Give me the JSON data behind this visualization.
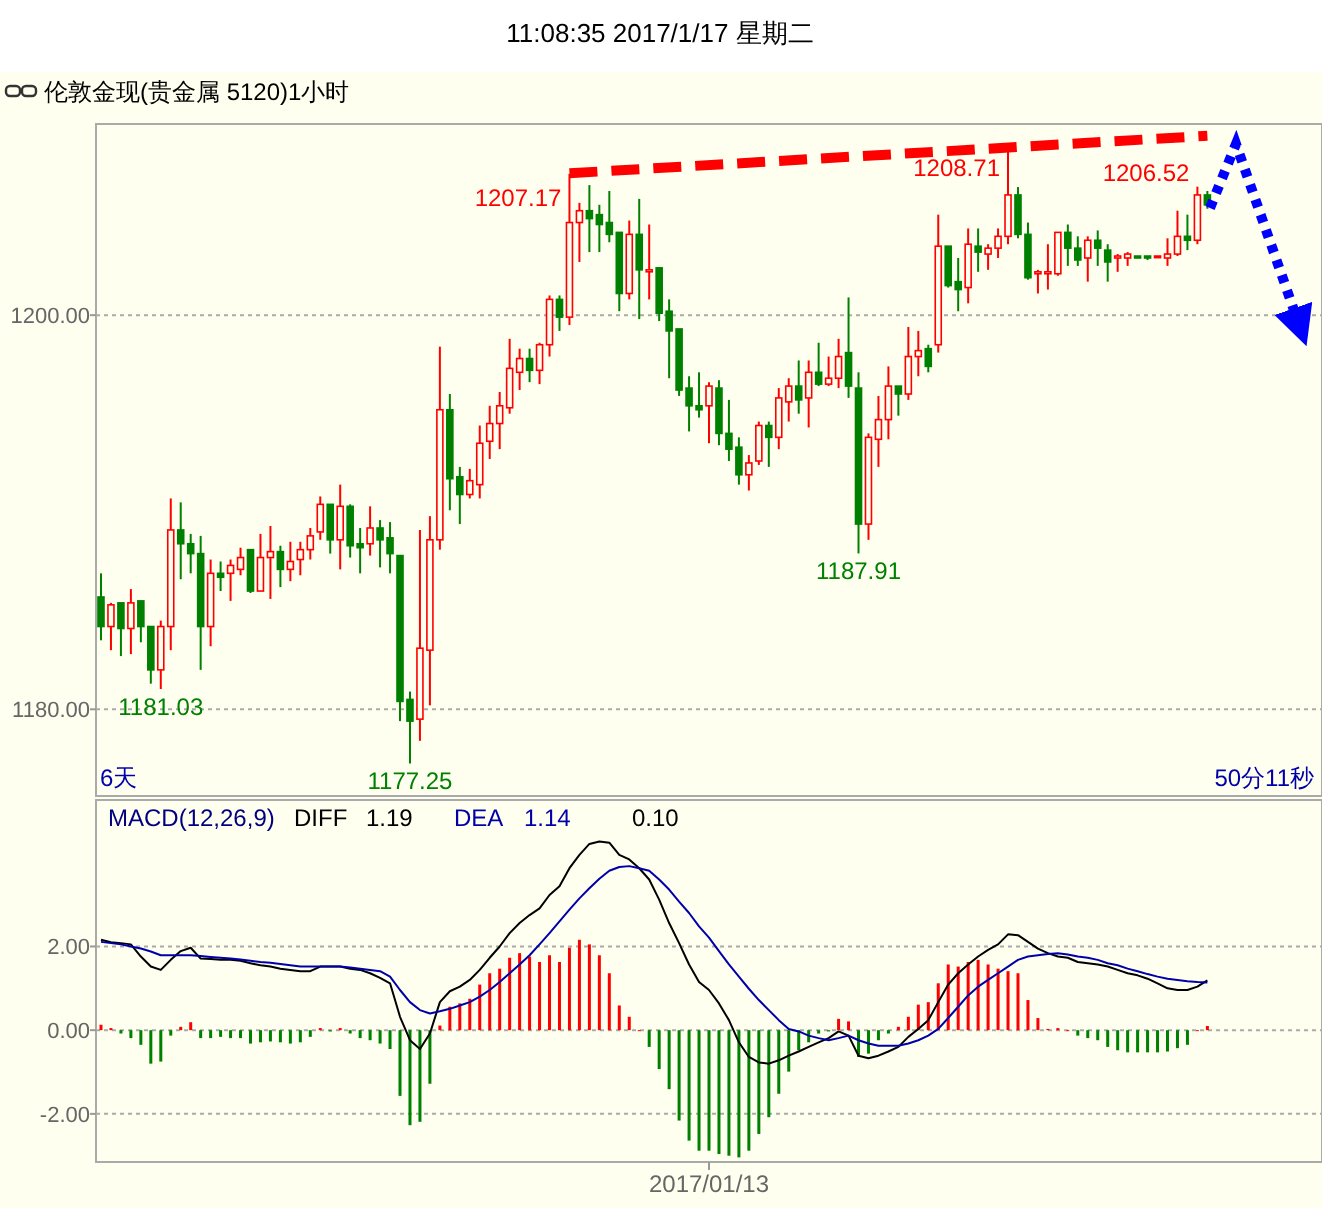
{
  "chart_data": [
    {
      "type": "candlestick",
      "title": "11:08:35 2017/1/17 星期二",
      "subtitle": "伦敦金现(贵金属 5120)1小时",
      "categories": [
        null,
        null,
        null,
        null,
        null,
        null,
        null,
        null,
        null,
        null,
        null,
        null,
        null,
        null,
        null,
        null,
        null,
        null,
        null,
        null,
        null,
        null,
        null,
        null,
        null,
        null,
        null,
        null,
        null,
        null,
        null,
        null,
        null,
        null,
        null,
        null,
        null,
        null,
        null,
        null,
        null,
        null,
        null,
        null,
        null,
        null,
        null,
        null,
        null,
        null,
        null,
        null,
        null,
        null,
        null,
        null,
        null,
        null,
        null,
        null,
        null,
        null,
        null,
        null,
        null,
        null,
        null,
        null,
        null,
        null,
        null,
        null,
        null,
        null,
        null,
        null,
        null,
        null,
        null,
        null,
        null,
        null,
        null,
        null,
        null,
        null,
        null,
        null,
        null,
        null,
        null,
        null,
        null,
        null,
        null,
        null,
        null,
        null,
        null,
        null,
        null,
        null,
        null,
        null,
        null,
        null,
        null,
        null,
        null,
        null,
        null,
        null,
        null,
        null,
        null,
        null,
        null,
        null,
        null,
        null,
        null,
        null,
        null
      ],
      "ohlc": [
        [
          1185.7,
          1186.9,
          1183.5,
          1184.2
        ],
        [
          1184.2,
          1185.4,
          1183.0,
          1185.3
        ],
        [
          1185.4,
          1185.4,
          1182.7,
          1184.1
        ],
        [
          1184.1,
          1186.1,
          1182.8,
          1185.4
        ],
        [
          1185.5,
          1185.5,
          1183.4,
          1184.2
        ],
        [
          1184.2,
          1184.2,
          1181.3,
          1182.0
        ],
        [
          1182.0,
          1184.5,
          1181.03,
          1184.2
        ],
        [
          1184.2,
          1190.7,
          1183.0,
          1189.1
        ],
        [
          1189.1,
          1190.5,
          1186.6,
          1188.4
        ],
        [
          1188.4,
          1188.9,
          1186.9,
          1187.9
        ],
        [
          1187.9,
          1188.8,
          1182.0,
          1184.2
        ],
        [
          1184.2,
          1187.6,
          1183.2,
          1186.9
        ],
        [
          1186.9,
          1187.5,
          1186.0,
          1186.7
        ],
        [
          1186.9,
          1187.6,
          1185.5,
          1187.3
        ],
        [
          1187.1,
          1188.2,
          1186.8,
          1187.7
        ],
        [
          1188.1,
          1188.1,
          1185.9,
          1186.0
        ],
        [
          1186.0,
          1188.9,
          1186.0,
          1187.7
        ],
        [
          1187.7,
          1189.3,
          1185.6,
          1188.0
        ],
        [
          1188.0,
          1188.3,
          1186.2,
          1187.1
        ],
        [
          1187.1,
          1188.5,
          1186.5,
          1187.5
        ],
        [
          1187.6,
          1188.5,
          1186.8,
          1188.1
        ],
        [
          1188.1,
          1189.2,
          1187.6,
          1188.8
        ],
        [
          1189.0,
          1190.8,
          1188.6,
          1190.4
        ],
        [
          1190.4,
          1190.4,
          1187.9,
          1188.6
        ],
        [
          1188.6,
          1191.4,
          1187.1,
          1190.3
        ],
        [
          1190.3,
          1190.4,
          1187.7,
          1188.3
        ],
        [
          1188.4,
          1189.2,
          1186.9,
          1188.2
        ],
        [
          1188.4,
          1190.3,
          1187.8,
          1189.2
        ],
        [
          1189.2,
          1189.6,
          1187.2,
          1188.6
        ],
        [
          1188.7,
          1189.5,
          1186.9,
          1187.9
        ],
        [
          1187.8,
          1187.8,
          1179.4,
          1180.4
        ],
        [
          1180.5,
          1180.9,
          1177.25,
          1179.4
        ],
        [
          1179.5,
          1189.1,
          1178.4,
          1183.1
        ],
        [
          1183.0,
          1189.8,
          1180.2,
          1188.6
        ],
        [
          1188.6,
          1198.4,
          1188.1,
          1195.2
        ],
        [
          1195.2,
          1196.0,
          1190.1,
          1191.7
        ],
        [
          1191.8,
          1192.3,
          1189.4,
          1190.9
        ],
        [
          1190.9,
          1192.2,
          1190.7,
          1191.6
        ],
        [
          1191.4,
          1194.4,
          1190.7,
          1193.5
        ],
        [
          1193.6,
          1195.4,
          1192.7,
          1194.5
        ],
        [
          1194.5,
          1196.1,
          1193.2,
          1195.4
        ],
        [
          1195.3,
          1198.8,
          1195.0,
          1197.3
        ],
        [
          1197.1,
          1198.3,
          1196.2,
          1197.8
        ],
        [
          1197.8,
          1198.3,
          1196.6,
          1197.2
        ],
        [
          1197.2,
          1198.6,
          1196.5,
          1198.5
        ],
        [
          1198.5,
          1201.0,
          1197.9,
          1200.8
        ],
        [
          1200.8,
          1201.0,
          1199.2,
          1199.9
        ],
        [
          1199.9,
          1207.17,
          1199.5,
          1204.7
        ],
        [
          1204.7,
          1205.7,
          1202.7,
          1205.3
        ],
        [
          1205.3,
          1206.6,
          1203.2,
          1204.9
        ],
        [
          1205.1,
          1205.6,
          1203.2,
          1204.6
        ],
        [
          1204.7,
          1206.3,
          1203.7,
          1204.1
        ],
        [
          1204.2,
          1204.2,
          1200.2,
          1201.1
        ],
        [
          1201.1,
          1204.8,
          1200.8,
          1204.1
        ],
        [
          1204.1,
          1205.9,
          1199.8,
          1202.3
        ],
        [
          1202.2,
          1204.6,
          1200.8,
          1202.3
        ],
        [
          1202.4,
          1202.4,
          1199.7,
          1200.1
        ],
        [
          1200.2,
          1200.8,
          1196.8,
          1199.2
        ],
        [
          1199.3,
          1199.3,
          1195.9,
          1196.2
        ],
        [
          1196.3,
          1196.9,
          1194.1,
          1195.4
        ],
        [
          1195.4,
          1197.1,
          1194.8,
          1195.2
        ],
        [
          1195.4,
          1196.6,
          1193.5,
          1196.4
        ],
        [
          1196.3,
          1196.7,
          1193.4,
          1194.0
        ],
        [
          1194.0,
          1195.7,
          1192.6,
          1193.2
        ],
        [
          1193.3,
          1193.8,
          1191.4,
          1191.9
        ],
        [
          1191.9,
          1192.9,
          1191.1,
          1192.5
        ],
        [
          1192.6,
          1194.6,
          1192.4,
          1194.4
        ],
        [
          1194.4,
          1194.6,
          1192.3,
          1193.8
        ],
        [
          1193.8,
          1196.3,
          1193.2,
          1195.8
        ],
        [
          1195.6,
          1196.8,
          1194.6,
          1196.4
        ],
        [
          1196.4,
          1197.7,
          1195.0,
          1195.7
        ],
        [
          1195.8,
          1197.7,
          1194.3,
          1197.1
        ],
        [
          1197.1,
          1198.6,
          1196.4,
          1196.5
        ],
        [
          1196.5,
          1197.9,
          1196.4,
          1196.8
        ],
        [
          1196.8,
          1198.8,
          1196.3,
          1197.9
        ],
        [
          1198.1,
          1200.9,
          1195.8,
          1196.4
        ],
        [
          1196.3,
          1197.1,
          1187.91,
          1189.4
        ],
        [
          1189.4,
          1194.0,
          1188.6,
          1193.8
        ],
        [
          1193.7,
          1195.9,
          1192.3,
          1194.7
        ],
        [
          1194.7,
          1197.4,
          1193.7,
          1196.4
        ],
        [
          1196.4,
          1196.4,
          1194.9,
          1196.0
        ],
        [
          1196.0,
          1199.4,
          1195.7,
          1197.9
        ],
        [
          1197.9,
          1199.2,
          1196.9,
          1198.2
        ],
        [
          1198.3,
          1198.5,
          1197.1,
          1197.4
        ],
        [
          1198.5,
          1205.1,
          1198.1,
          1203.5
        ],
        [
          1203.5,
          1203.5,
          1201.4,
          1201.5
        ],
        [
          1201.7,
          1202.9,
          1200.2,
          1201.3
        ],
        [
          1201.4,
          1204.4,
          1200.6,
          1203.6
        ],
        [
          1203.5,
          1204.4,
          1202.2,
          1203.2
        ],
        [
          1203.1,
          1203.6,
          1202.3,
          1203.4
        ],
        [
          1203.4,
          1204.4,
          1202.9,
          1204.0
        ],
        [
          1204.0,
          1208.71,
          1203.6,
          1206.1
        ],
        [
          1206.1,
          1206.5,
          1203.9,
          1204.1
        ],
        [
          1204.1,
          1204.7,
          1201.8,
          1201.9
        ],
        [
          1202.1,
          1202.3,
          1201.1,
          1202.2
        ],
        [
          1202.1,
          1203.6,
          1201.3,
          1202.2
        ],
        [
          1202.1,
          1204.2,
          1202.0,
          1204.2
        ],
        [
          1204.2,
          1204.6,
          1202.5,
          1203.4
        ],
        [
          1203.4,
          1204.0,
          1202.5,
          1202.8
        ],
        [
          1202.9,
          1204.0,
          1201.7,
          1203.8
        ],
        [
          1203.8,
          1204.3,
          1202.5,
          1203.4
        ],
        [
          1203.3,
          1203.6,
          1201.7,
          1202.7
        ],
        [
          1202.9,
          1203.1,
          1202.2,
          1203.0
        ],
        [
          1202.9,
          1203.2,
          1202.5,
          1203.1
        ],
        [
          1203.0,
          1203.0,
          1202.9,
          1202.9
        ],
        [
          1203.0,
          1203.0,
          1202.8,
          1202.9
        ],
        [
          1203.0,
          1203.0,
          1203.0,
          1203.0
        ],
        [
          1202.9,
          1203.9,
          1202.5,
          1203.1
        ],
        [
          1203.1,
          1205.3,
          1203.0,
          1204.0
        ],
        [
          1204.0,
          1205.1,
          1203.3,
          1203.8
        ],
        [
          1203.8,
          1206.52,
          1203.6,
          1206.1
        ],
        [
          1206.1,
          1206.3,
          1205.4,
          1205.6
        ],
        null,
        null,
        null,
        null,
        null,
        null,
        null,
        null,
        null,
        null,
        null
      ],
      "series": [
        {
          "type": "line",
          "color": "#ff0000",
          "line_style": "dashed",
          "values": [
            null,
            null,
            null,
            null,
            null,
            null,
            null,
            null,
            null,
            null,
            null,
            null,
            null,
            null,
            null,
            null,
            null,
            null,
            null,
            null,
            null,
            null,
            null,
            null,
            null,
            null,
            null,
            null,
            null,
            null,
            null,
            null,
            null,
            null,
            null,
            null,
            null,
            null,
            null,
            null,
            null,
            null,
            null,
            null,
            null,
            null,
            null,
            1207.2,
            null,
            null,
            null,
            null,
            null,
            null,
            null,
            null,
            null,
            null,
            null,
            null,
            null,
            null,
            null,
            null,
            null,
            null,
            null,
            null,
            null,
            null,
            null,
            null,
            null,
            null,
            null,
            null,
            null,
            null,
            null,
            null,
            null,
            null,
            null,
            null,
            null,
            null,
            null,
            null,
            null,
            null,
            null,
            null,
            null,
            null,
            null,
            null,
            null,
            null,
            null,
            null,
            null,
            null,
            null,
            null,
            null,
            null,
            null,
            null,
            null,
            null,
            null,
            1209.1,
            null,
            null,
            null,
            null,
            null,
            null,
            null,
            null,
            null,
            null,
            null
          ]
        }
      ],
      "ylim": [
        1175.6,
        1209.7
      ],
      "yticks": [
        {
          "value": 1180,
          "label": "1180.00"
        },
        {
          "value": 1200,
          "label": "1200.00"
        }
      ],
      "grid": "y",
      "tick_labels": "y",
      "annotations": [
        "1207.17",
        "1208.71",
        "1206.52",
        "1181.03",
        "1177.25",
        "1187.91",
        "6天",
        "50分11秒"
      ]
    },
    {
      "type": "bar",
      "title": "MACD(12,26,9)",
      "categories": [
        null,
        null,
        null,
        null,
        null,
        null,
        null,
        null,
        null,
        null,
        null,
        null,
        null,
        null,
        null,
        null,
        null,
        null,
        null,
        null,
        null,
        null,
        null,
        null,
        null,
        null,
        null,
        null,
        null,
        null,
        null,
        null,
        null,
        null,
        null,
        null,
        null,
        null,
        null,
        null,
        null,
        null,
        null,
        null,
        null,
        null,
        null,
        null,
        null,
        null,
        null,
        null,
        null,
        null,
        null,
        null,
        null,
        null,
        null,
        null,
        null,
        "2017/01/13",
        null,
        null,
        null,
        null,
        null,
        null,
        null,
        null,
        null,
        null,
        null,
        null,
        null,
        null,
        null,
        null,
        null,
        null,
        null,
        null,
        null,
        null,
        null,
        null,
        null,
        null,
        null,
        null,
        null,
        null,
        null,
        null,
        null,
        null,
        null,
        null,
        null,
        null,
        null,
        null,
        null,
        null,
        null,
        null,
        null,
        null,
        null,
        null,
        null,
        null,
        null,
        null,
        null,
        null,
        null,
        null,
        null,
        null,
        null,
        null,
        null
      ],
      "series": [
        {
          "type": "bar",
          "colors": [
            "#ff0000",
            "#ff0000",
            "#008000",
            "#008000",
            "#008000",
            "#008000",
            "#008000",
            "#008000",
            "#ff0000",
            "#ff0000",
            "#008000",
            "#008000",
            "#008000",
            "#008000",
            "#008000",
            "#008000",
            "#008000",
            "#008000",
            "#008000",
            "#008000",
            "#008000",
            "#008000",
            "#ff0000",
            "#008000",
            "#ff0000",
            "#008000",
            "#008000",
            "#008000",
            "#008000",
            "#008000",
            "#008000",
            "#008000",
            "#008000",
            "#008000",
            "#ff0000",
            "#ff0000",
            "#ff0000",
            "#ff0000",
            "#ff0000",
            "#ff0000",
            "#ff0000",
            "#ff0000",
            "#ff0000",
            "#ff0000",
            "#ff0000",
            "#ff0000",
            "#ff0000",
            "#ff0000",
            "#ff0000",
            "#ff0000",
            "#ff0000",
            "#ff0000",
            "#ff0000",
            "#ff0000",
            "#ff0000",
            "#008000",
            "#008000",
            "#008000",
            "#008000",
            "#008000",
            "#008000",
            "#008000",
            "#008000",
            "#008000",
            "#008000",
            "#008000",
            "#008000",
            "#008000",
            "#008000",
            "#008000",
            "#008000",
            "#008000",
            "#008000",
            "#008000",
            "#ff0000",
            "#ff0000",
            "#008000",
            "#008000",
            "#008000",
            "#008000",
            "#ff0000",
            "#ff0000",
            "#ff0000",
            "#ff0000",
            "#ff0000",
            "#ff0000",
            "#ff0000",
            "#ff0000",
            "#ff0000",
            "#ff0000",
            "#ff0000",
            "#ff0000",
            "#ff0000",
            "#ff0000",
            "#ff0000",
            "#ff0000",
            "#ff0000",
            "#ff0000",
            "#008000",
            "#008000",
            "#008000",
            "#008000",
            "#008000",
            "#008000",
            "#008000",
            "#008000",
            "#008000",
            "#008000",
            "#008000",
            "#008000",
            "#ff0000",
            "#ff0000",
            null,
            null,
            null,
            null,
            null,
            null,
            null,
            null,
            null,
            null,
            null
          ],
          "values": [
            0.13,
            0.05,
            -0.08,
            -0.19,
            -0.35,
            -0.8,
            -0.75,
            -0.13,
            0.08,
            0.19,
            -0.19,
            -0.19,
            -0.16,
            -0.19,
            -0.19,
            -0.32,
            -0.29,
            -0.27,
            -0.29,
            -0.32,
            -0.29,
            -0.16,
            0.05,
            -0.03,
            0.05,
            -0.08,
            -0.19,
            -0.24,
            -0.32,
            -0.45,
            -1.57,
            -2.27,
            -2.19,
            -1.28,
            0.11,
            0.56,
            0.64,
            0.75,
            1.09,
            1.36,
            1.47,
            1.73,
            1.84,
            1.76,
            1.63,
            1.79,
            1.63,
            1.97,
            2.16,
            2.05,
            1.79,
            1.36,
            0.59,
            0.32,
            0,
            -0.4,
            -0.93,
            -1.41,
            -2.16,
            -2.64,
            -2.88,
            -2.88,
            -2.96,
            -3.0,
            -3.04,
            -2.88,
            -2.48,
            -2.08,
            -1.52,
            -0.99,
            -0.48,
            -0.29,
            -0.08,
            -0.03,
            0.27,
            0.21,
            -0.64,
            -0.56,
            -0.24,
            -0.08,
            0.08,
            0.32,
            0.61,
            0.67,
            1.12,
            1.57,
            1.52,
            1.63,
            1.68,
            1.57,
            1.47,
            1.41,
            1.36,
            0.72,
            0.29,
            0.03,
            0.05,
            0,
            -0.13,
            -0.19,
            -0.24,
            -0.4,
            -0.48,
            -0.53,
            -0.53,
            -0.53,
            -0.53,
            -0.51,
            -0.43,
            -0.35,
            0,
            0.1,
            null,
            null,
            null,
            null,
            null,
            null,
            null,
            null,
            null,
            null,
            null
          ]
        },
        {
          "name": "DIFF",
          "type": "line",
          "color": "#000000",
          "values": [
            2.16,
            2.1,
            2.08,
            2.05,
            1.76,
            1.52,
            1.44,
            1.68,
            1.89,
            1.97,
            1.71,
            1.7,
            1.68,
            1.68,
            1.66,
            1.6,
            1.55,
            1.52,
            1.47,
            1.44,
            1.41,
            1.41,
            1.52,
            1.52,
            1.52,
            1.47,
            1.44,
            1.36,
            1.25,
            1.12,
            0.32,
            -0.24,
            -0.45,
            -0.08,
            0.67,
            0.93,
            1.04,
            1.2,
            1.44,
            1.73,
            2.0,
            2.32,
            2.56,
            2.75,
            2.91,
            3.23,
            3.44,
            3.87,
            4.19,
            4.45,
            4.51,
            4.48,
            4.19,
            4.08,
            3.87,
            3.6,
            3.12,
            2.56,
            2.08,
            1.57,
            1.15,
            0.96,
            0.64,
            0.24,
            -0.29,
            -0.64,
            -0.77,
            -0.8,
            -0.72,
            -0.61,
            -0.51,
            -0.4,
            -0.29,
            -0.19,
            -0.03,
            -0.13,
            -0.61,
            -0.67,
            -0.61,
            -0.51,
            -0.4,
            -0.16,
            0.03,
            0.24,
            0.67,
            1.09,
            1.36,
            1.57,
            1.76,
            1.92,
            2.05,
            2.29,
            2.27,
            2.11,
            1.95,
            1.84,
            1.76,
            1.73,
            1.63,
            1.6,
            1.57,
            1.52,
            1.44,
            1.36,
            1.31,
            1.23,
            1.12,
            1.0,
            0.96,
            0.96,
            1.04,
            1.19,
            null,
            null,
            null,
            null,
            null,
            null,
            null,
            null,
            null,
            null,
            null
          ]
        },
        {
          "name": "DEA",
          "type": "line",
          "color": "#0000aa",
          "values": [
            2.11,
            2.08,
            2.05,
            2.0,
            1.95,
            1.88,
            1.79,
            1.79,
            1.79,
            1.79,
            1.77,
            1.75,
            1.73,
            1.71,
            1.69,
            1.66,
            1.63,
            1.61,
            1.58,
            1.55,
            1.52,
            1.52,
            1.52,
            1.52,
            1.52,
            1.5,
            1.47,
            1.44,
            1.41,
            1.28,
            0.96,
            0.67,
            0.48,
            0.4,
            0.45,
            0.51,
            0.59,
            0.67,
            0.8,
            0.96,
            1.15,
            1.36,
            1.57,
            1.79,
            2.05,
            2.32,
            2.6,
            2.88,
            3.15,
            3.39,
            3.62,
            3.81,
            3.9,
            3.92,
            3.87,
            3.81,
            3.6,
            3.36,
            3.07,
            2.8,
            2.48,
            2.21,
            1.89,
            1.57,
            1.28,
            0.99,
            0.72,
            0.48,
            0.24,
            0.03,
            -0.03,
            -0.13,
            -0.19,
            -0.24,
            -0.19,
            -0.13,
            -0.24,
            -0.32,
            -0.37,
            -0.37,
            -0.37,
            -0.32,
            -0.24,
            -0.13,
            0.03,
            0.29,
            0.56,
            0.83,
            1.04,
            1.2,
            1.36,
            1.52,
            1.68,
            1.76,
            1.79,
            1.82,
            1.84,
            1.81,
            1.76,
            1.73,
            1.68,
            1.6,
            1.55,
            1.47,
            1.41,
            1.34,
            1.28,
            1.23,
            1.2,
            1.17,
            1.15,
            1.14,
            null,
            null,
            null,
            null,
            null,
            null,
            null,
            null,
            null,
            null,
            null
          ]
        }
      ],
      "ylim": [
        -3.15,
        5.5
      ],
      "yticks": [
        {
          "value": 2,
          "label": "2.00"
        },
        {
          "value": 0,
          "label": "0.00"
        },
        {
          "value": -2,
          "label": "-2.00"
        }
      ],
      "grid": "y",
      "legend": "top left",
      "annotations": [
        "1.19",
        "1.14",
        "0.10"
      ]
    }
  ]
}
